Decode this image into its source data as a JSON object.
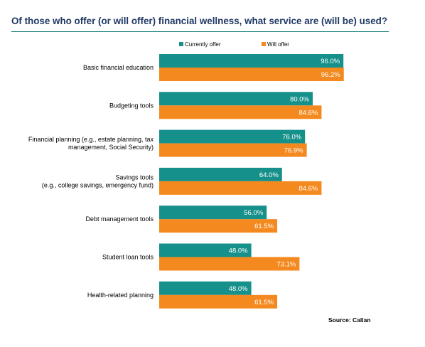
{
  "title": "Of those who offer (or will offer) financial wellness, what service are (will be) used?",
  "source": "Source: Callan",
  "colors": {
    "currently": "#16908a",
    "will": "#f48a1f",
    "title": "#1f3864"
  },
  "chart_data": {
    "type": "bar",
    "orientation": "horizontal",
    "xlim": [
      0,
      100
    ],
    "legend_position": "top",
    "grid": false,
    "categories": [
      [
        "Basic financial education"
      ],
      [
        "Budgeting tools"
      ],
      [
        "Financial planning (e.g., estate planning, tax",
        "management, Social Security)"
      ],
      [
        "Savings tools",
        "(e.g., college savings, emergency fund)"
      ],
      [
        "Debt management tools"
      ],
      [
        "Student loan tools"
      ],
      [
        "Health-related planning"
      ]
    ],
    "series": [
      {
        "name": "Currently offer",
        "values": [
          96.0,
          80.0,
          76.0,
          64.0,
          56.0,
          48.0,
          48.0
        ],
        "labels": [
          "96.0%",
          "80.0%",
          "76.0%",
          "64.0%",
          "56.0%",
          "48.0%",
          "48.0%"
        ]
      },
      {
        "name": "Will offer",
        "values": [
          96.2,
          84.6,
          76.9,
          84.6,
          61.5,
          73.1,
          61.5
        ],
        "labels": [
          "96.2%",
          "84.6%",
          "76.9%",
          "84.6%",
          "61.5%",
          "73.1%",
          "61.5%"
        ]
      }
    ]
  }
}
